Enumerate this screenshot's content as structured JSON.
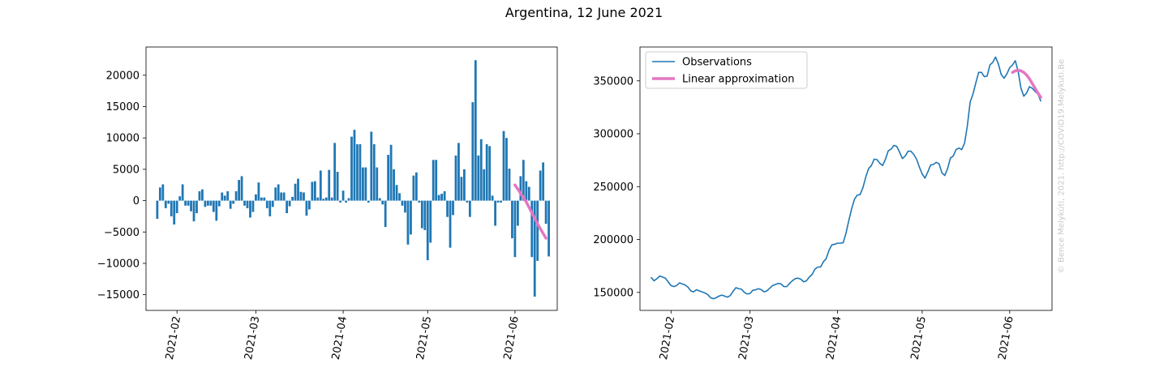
{
  "suptitle": "Argentina, 12 June 2021",
  "watermark": "© Bence Melykúti, 2021. http://COVID19.Melykuti.Be",
  "colors": {
    "bars": "#1f77b4",
    "observations": "#1f77b4",
    "approximation": "#e377c2"
  },
  "chart_data": [
    {
      "type": "bar",
      "title": "",
      "xlabel": "",
      "ylabel": "",
      "x_axis": "date",
      "xlim": [
        "2021-01-21",
        "2021-06-16"
      ],
      "ylim": [
        -17500,
        24500
      ],
      "yticks": [
        -15000,
        -10000,
        -5000,
        0,
        5000,
        10000,
        15000,
        20000
      ],
      "xticks": [
        "2021-02-01",
        "2021-03-01",
        "2021-04-01",
        "2021-05-01",
        "2021-06-01"
      ],
      "xtick_labels": [
        "2021-02",
        "2021-03",
        "2021-04",
        "2021-05",
        "2021-06"
      ],
      "bars": {
        "start_date": "2021-01-25",
        "values": [
          -2900,
          2100,
          2600,
          -1200,
          -500,
          -2500,
          -3800,
          -2000,
          700,
          2600,
          -800,
          -800,
          -1700,
          -3300,
          -2000,
          1500,
          1800,
          -1000,
          -800,
          -800,
          -1800,
          -3200,
          -900,
          1300,
          800,
          1500,
          -1300,
          -500,
          1500,
          3300,
          3900,
          -800,
          -1200,
          -2700,
          -1800,
          1000,
          2900,
          500,
          500,
          -1200,
          -2500,
          -1000,
          2100,
          2600,
          1300,
          1300,
          -2000,
          -900,
          600,
          2700,
          3500,
          1400,
          1300,
          -2400,
          -1400,
          3000,
          3100,
          500,
          4800,
          300,
          500,
          4900,
          500,
          9200,
          4600,
          -300,
          1600,
          -300,
          400,
          10200,
          11300,
          9000,
          9000,
          5300,
          5300,
          -300,
          11000,
          9000,
          5300,
          400,
          -600,
          -4200,
          7300,
          8900,
          5000,
          2500,
          1200,
          -800,
          -1900,
          -7000,
          -5400,
          4000,
          4500,
          -300,
          -4400,
          -4700,
          -9500,
          -6700,
          6500,
          6500,
          900,
          1100,
          1500,
          -2600,
          -7500,
          -2300,
          7200,
          9200,
          3800,
          5000,
          -300,
          -2600,
          15700,
          22400,
          7200,
          9800,
          5000,
          9000,
          8700,
          800,
          -4000,
          -300,
          -300,
          11100,
          10000,
          5100,
          -6000,
          -9000,
          -4000,
          3900,
          6500,
          3100,
          2200,
          -9000,
          -15300,
          -9600,
          4800,
          6100,
          -3700,
          -8900
        ],
        "color": "#1f77b4"
      },
      "approximation": {
        "name": "Linear approximation",
        "x": [
          "2021-06-01",
          "2021-06-05",
          "2021-06-09",
          "2021-06-12"
        ],
        "y": [
          2500,
          -200,
          -3700,
          -6000
        ],
        "color": "#e377c2"
      }
    },
    {
      "type": "line",
      "title": "",
      "xlabel": "",
      "ylabel": "",
      "x_axis": "date",
      "xlim": [
        "2021-01-21",
        "2021-06-16"
      ],
      "ylim": [
        133000,
        382000
      ],
      "yticks": [
        150000,
        200000,
        250000,
        300000,
        350000
      ],
      "xticks": [
        "2021-02-01",
        "2021-03-01",
        "2021-04-01",
        "2021-05-01",
        "2021-06-01"
      ],
      "xtick_labels": [
        "2021-02",
        "2021-03",
        "2021-04",
        "2021-05",
        "2021-06"
      ],
      "legend": {
        "location": "upper-left",
        "entries": [
          "Observations",
          "Linear approximation"
        ]
      },
      "series": [
        {
          "name": "Observations",
          "color": "#1f77b4",
          "points": [
            [
              "2021-01-25",
              164000
            ],
            [
              "2021-01-26",
              161000
            ],
            [
              "2021-01-27",
              163000
            ],
            [
              "2021-01-28",
              165500
            ],
            [
              "2021-01-29",
              164500
            ],
            [
              "2021-01-30",
              163500
            ],
            [
              "2021-01-31",
              160000
            ],
            [
              "2021-02-01",
              156500
            ],
            [
              "2021-02-02",
              155500
            ],
            [
              "2021-02-03",
              156500
            ],
            [
              "2021-02-04",
              159000
            ],
            [
              "2021-02-05",
              158000
            ],
            [
              "2021-02-06",
              157000
            ],
            [
              "2021-02-07",
              155000
            ],
            [
              "2021-02-08",
              151500
            ],
            [
              "2021-02-09",
              150500
            ],
            [
              "2021-02-10",
              152500
            ],
            [
              "2021-02-11",
              151500
            ],
            [
              "2021-02-12",
              150500
            ],
            [
              "2021-02-13",
              149500
            ],
            [
              "2021-02-14",
              148000
            ],
            [
              "2021-02-15",
              145000
            ],
            [
              "2021-02-16",
              144000
            ],
            [
              "2021-02-17",
              145000
            ],
            [
              "2021-02-18",
              146500
            ],
            [
              "2021-02-19",
              147500
            ],
            [
              "2021-02-20",
              146500
            ],
            [
              "2021-02-21",
              145500
            ],
            [
              "2021-02-22",
              147000
            ],
            [
              "2021-02-23",
              151000
            ],
            [
              "2021-02-24",
              154500
            ],
            [
              "2021-02-25",
              153500
            ],
            [
              "2021-02-26",
              153000
            ],
            [
              "2021-02-27",
              150000
            ],
            [
              "2021-02-28",
              148500
            ],
            [
              "2021-03-01",
              149000
            ],
            [
              "2021-03-02",
              152000
            ],
            [
              "2021-03-03",
              152500
            ],
            [
              "2021-03-04",
              153500
            ],
            [
              "2021-03-05",
              152500
            ],
            [
              "2021-03-06",
              150500
            ],
            [
              "2021-03-07",
              151500
            ],
            [
              "2021-03-08",
              154000
            ],
            [
              "2021-03-09",
              156500
            ],
            [
              "2021-03-10",
              157500
            ],
            [
              "2021-03-11",
              158500
            ],
            [
              "2021-03-12",
              158000
            ],
            [
              "2021-03-13",
              155500
            ],
            [
              "2021-03-14",
              155500
            ],
            [
              "2021-03-15",
              158500
            ],
            [
              "2021-03-16",
              161000
            ],
            [
              "2021-03-17",
              163000
            ],
            [
              "2021-03-18",
              163500
            ],
            [
              "2021-03-19",
              162500
            ],
            [
              "2021-03-20",
              160000
            ],
            [
              "2021-03-21",
              161000
            ],
            [
              "2021-03-22",
              164500
            ],
            [
              "2021-03-23",
              167000
            ],
            [
              "2021-03-24",
              172000
            ],
            [
              "2021-03-25",
              174000
            ],
            [
              "2021-03-26",
              174000
            ],
            [
              "2021-03-27",
              179000
            ],
            [
              "2021-03-28",
              182000
            ],
            [
              "2021-03-29",
              190000
            ],
            [
              "2021-03-30",
              195000
            ],
            [
              "2021-03-31",
              195500
            ],
            [
              "2021-04-01",
              196500
            ],
            [
              "2021-04-02",
              196500
            ],
            [
              "2021-04-03",
              197000
            ],
            [
              "2021-04-04",
              206000
            ],
            [
              "2021-04-05",
              218000
            ],
            [
              "2021-04-06",
              229000
            ],
            [
              "2021-04-07",
              238000
            ],
            [
              "2021-04-08",
              242000
            ],
            [
              "2021-04-09",
              242500
            ],
            [
              "2021-04-10",
              249000
            ],
            [
              "2021-04-11",
              259000
            ],
            [
              "2021-04-12",
              267000
            ],
            [
              "2021-04-13",
              270000
            ],
            [
              "2021-04-14",
              276000
            ],
            [
              "2021-04-15",
              275500
            ],
            [
              "2021-04-16",
              272000
            ],
            [
              "2021-04-17",
              270000
            ],
            [
              "2021-04-18",
              276000
            ],
            [
              "2021-04-19",
              284000
            ],
            [
              "2021-04-20",
              285500
            ],
            [
              "2021-04-21",
              289000
            ],
            [
              "2021-04-22",
              288000
            ],
            [
              "2021-04-23",
              282500
            ],
            [
              "2021-04-24",
              276500
            ],
            [
              "2021-04-25",
              279000
            ],
            [
              "2021-04-26",
              283500
            ],
            [
              "2021-04-27",
              283500
            ],
            [
              "2021-04-28",
              280500
            ],
            [
              "2021-04-29",
              276000
            ],
            [
              "2021-04-30",
              268500
            ],
            [
              "2021-05-01",
              262000
            ],
            [
              "2021-05-02",
              258000
            ],
            [
              "2021-05-03",
              264000
            ],
            [
              "2021-05-04",
              270500
            ],
            [
              "2021-05-05",
              271000
            ],
            [
              "2021-05-06",
              273000
            ],
            [
              "2021-05-07",
              271500
            ],
            [
              "2021-05-08",
              263000
            ],
            [
              "2021-05-09",
              260500
            ],
            [
              "2021-05-10",
              267000
            ],
            [
              "2021-05-11",
              277000
            ],
            [
              "2021-05-12",
              279000
            ],
            [
              "2021-05-13",
              285000
            ],
            [
              "2021-05-14",
              286500
            ],
            [
              "2021-05-15",
              285000
            ],
            [
              "2021-05-16",
              291000
            ],
            [
              "2021-05-17",
              307500
            ],
            [
              "2021-05-18",
              330000
            ],
            [
              "2021-05-19",
              337500
            ],
            [
              "2021-05-20",
              348000
            ],
            [
              "2021-05-21",
              358000
            ],
            [
              "2021-05-22",
              358000
            ],
            [
              "2021-05-23",
              354000
            ],
            [
              "2021-05-24",
              354500
            ],
            [
              "2021-05-25",
              365000
            ],
            [
              "2021-05-26",
              367500
            ],
            [
              "2021-05-27",
              372500
            ],
            [
              "2021-05-28",
              366000
            ],
            [
              "2021-05-29",
              356000
            ],
            [
              "2021-05-30",
              352500
            ],
            [
              "2021-05-31",
              356500
            ],
            [
              "2021-06-01",
              362500
            ],
            [
              "2021-06-02",
              365000
            ],
            [
              "2021-06-03",
              369000
            ],
            [
              "2021-06-04",
              359000
            ],
            [
              "2021-06-05",
              343000
            ],
            [
              "2021-06-06",
              335500
            ],
            [
              "2021-06-07",
              338500
            ],
            [
              "2021-06-08",
              344500
            ],
            [
              "2021-06-09",
              343000
            ],
            [
              "2021-06-10",
              340000
            ],
            [
              "2021-06-11",
              337500
            ],
            [
              "2021-06-12",
              331000
            ]
          ]
        },
        {
          "name": "Linear approximation",
          "color": "#e377c2",
          "points": [
            [
              "2021-06-02",
              358000
            ],
            [
              "2021-06-03",
              359500
            ],
            [
              "2021-06-04",
              360000
            ],
            [
              "2021-06-05",
              359500
            ],
            [
              "2021-06-06",
              358000
            ],
            [
              "2021-06-07",
              355500
            ],
            [
              "2021-06-08",
              352000
            ],
            [
              "2021-06-09",
              347500
            ],
            [
              "2021-06-10",
              343000
            ],
            [
              "2021-06-11",
              338500
            ],
            [
              "2021-06-12",
              334500
            ]
          ]
        }
      ]
    }
  ]
}
